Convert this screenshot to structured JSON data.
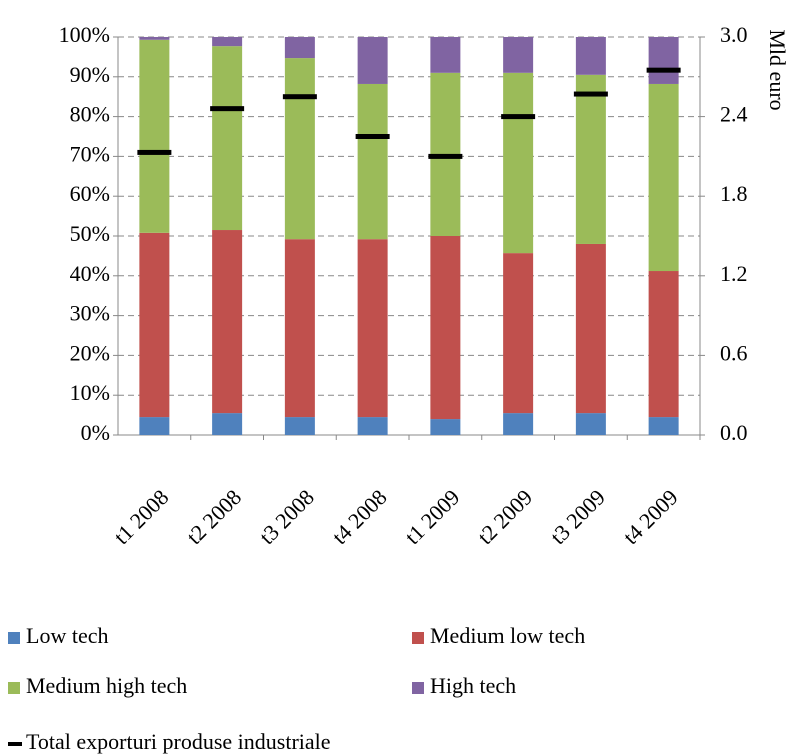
{
  "chart_data": {
    "type": "bar",
    "stacked": true,
    "y2_label": "Mld euro",
    "categories": [
      "t1 2008",
      "t2 2008",
      "t3 2008",
      "t4 2008",
      "t1 2009",
      "t2 2009",
      "t3 2009",
      "t4 2009"
    ],
    "series": [
      {
        "name": "Low tech",
        "color": "#4f81bd",
        "values": [
          4.5,
          5.5,
          4.5,
          4.5,
          4.0,
          5.5,
          5.5,
          4.5
        ]
      },
      {
        "name": "Medium low tech",
        "color": "#c0504d",
        "values": [
          46.3,
          46.0,
          44.7,
          44.7,
          46.0,
          40.2,
          42.5,
          36.7
        ]
      },
      {
        "name": "Medium high tech",
        "color": "#9bbb59",
        "values": [
          48.5,
          46.2,
          45.5,
          39.0,
          41.0,
          45.3,
          42.5,
          47.0
        ]
      },
      {
        "name": "High tech",
        "color": "#8064a2",
        "values": [
          0.7,
          2.3,
          5.3,
          11.8,
          9.0,
          9.0,
          9.5,
          11.8
        ]
      },
      {
        "name": "Total exporturi produse industriale",
        "color": "#000000",
        "axis": "y2",
        "values": [
          2.13,
          2.46,
          2.55,
          2.25,
          2.1,
          2.4,
          2.57,
          2.75
        ]
      }
    ],
    "ylim": [
      0,
      100
    ],
    "yticks": [
      {
        "value": 0,
        "label": "0%"
      },
      {
        "value": 10,
        "label": "10%"
      },
      {
        "value": 20,
        "label": "20%"
      },
      {
        "value": 30,
        "label": "30%"
      },
      {
        "value": 40,
        "label": "40%"
      },
      {
        "value": 50,
        "label": "50%"
      },
      {
        "value": 60,
        "label": "60%"
      },
      {
        "value": 70,
        "label": "70%"
      },
      {
        "value": 80,
        "label": "80%"
      },
      {
        "value": 90,
        "label": "90%"
      },
      {
        "value": 100,
        "label": "100%"
      }
    ],
    "y2lim": [
      0,
      3
    ],
    "y2ticks": [
      {
        "value": 0,
        "label": "0.0"
      },
      0.6,
      1.2,
      1.8,
      2.4,
      {
        "value": 3,
        "label": "3.0"
      }
    ],
    "grid": true
  }
}
